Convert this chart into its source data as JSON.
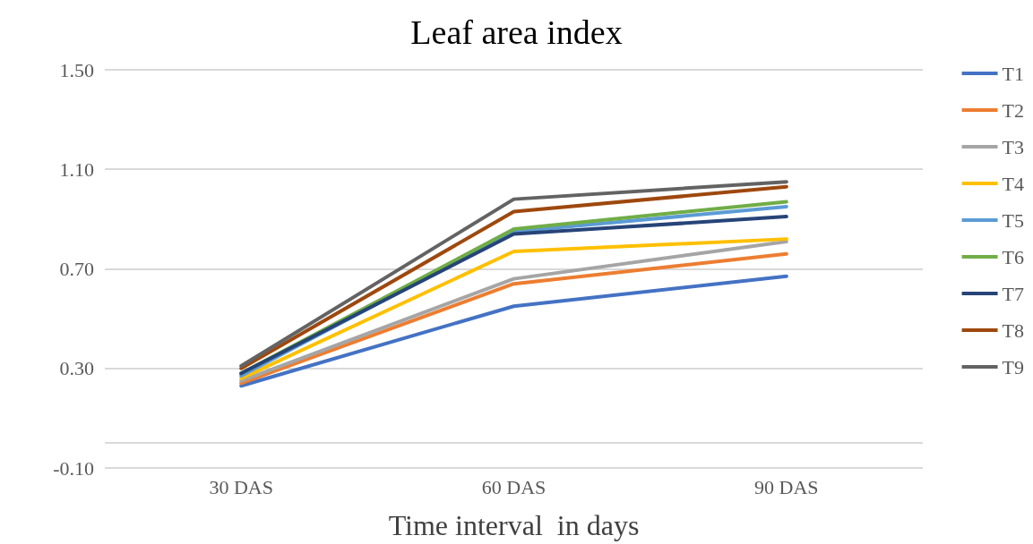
{
  "chart_data": {
    "type": "line",
    "title": "Leaf area index",
    "xlabel": "Time interval  in days",
    "categories": [
      "30 DAS",
      "60 DAS",
      "90 DAS"
    ],
    "series": [
      {
        "name": "T1",
        "color": "#4472c4",
        "values": [
          0.23,
          0.55,
          0.67
        ]
      },
      {
        "name": "T2",
        "color": "#ed7d31",
        "values": [
          0.24,
          0.64,
          0.76
        ]
      },
      {
        "name": "T3",
        "color": "#a5a5a5",
        "values": [
          0.25,
          0.66,
          0.81
        ]
      },
      {
        "name": "T4",
        "color": "#ffc000",
        "values": [
          0.26,
          0.77,
          0.82
        ]
      },
      {
        "name": "T5",
        "color": "#5b9bd5",
        "values": [
          0.27,
          0.85,
          0.95
        ]
      },
      {
        "name": "T6",
        "color": "#70ad47",
        "values": [
          0.28,
          0.86,
          0.97
        ]
      },
      {
        "name": "T7",
        "color": "#264478",
        "values": [
          0.28,
          0.84,
          0.91
        ]
      },
      {
        "name": "T8",
        "color": "#9e480e",
        "values": [
          0.3,
          0.93,
          1.03
        ]
      },
      {
        "name": "T9",
        "color": "#636363",
        "values": [
          0.31,
          0.98,
          1.05
        ]
      }
    ],
    "ylim": [
      -0.1,
      1.5
    ],
    "yticks": [
      {
        "value": -0.1,
        "label": "-0.10"
      },
      {
        "value": 0.3,
        "label": "0.30"
      },
      {
        "value": 0.7,
        "label": "0.70"
      },
      {
        "value": 1.1,
        "label": "1.10"
      },
      {
        "value": 1.5,
        "label": "1.50"
      }
    ],
    "ref_lines": [
      {
        "axis": "y",
        "value": 0,
        "color": "#d9d9d9"
      }
    ],
    "grid": "y",
    "legend": "right",
    "marker": "none",
    "line_style": "solid"
  }
}
